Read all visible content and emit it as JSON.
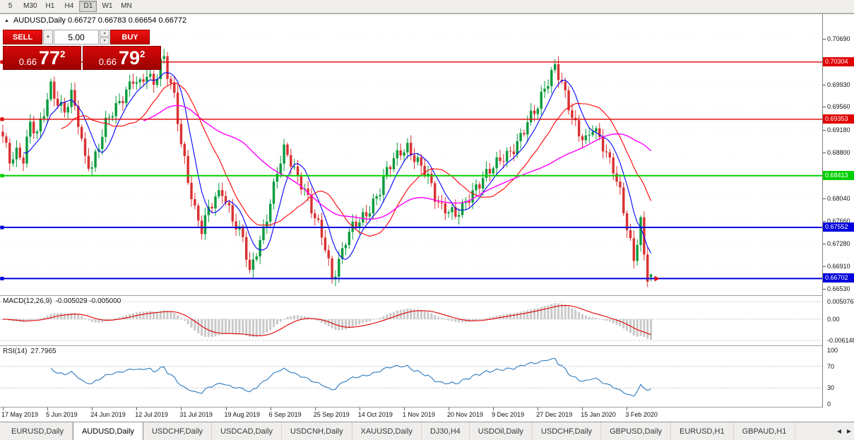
{
  "toolbar": {
    "timeframes": [
      "5",
      "M30",
      "H1",
      "H4",
      "D1",
      "W1",
      "MN"
    ],
    "active": "D1"
  },
  "chart_header": {
    "icon": "▲",
    "text": "AUDUSD,Daily 0.66727 0.66783 0.66654 0.66772"
  },
  "trade_panel": {
    "sell_label": "SELL",
    "buy_label": "BUY",
    "volume": "5.00",
    "combo_icon": "▼",
    "spin_up_icon": "▲",
    "spin_down_icon": "▼",
    "bid": {
      "small": "0.66",
      "big": "77",
      "sup": "2"
    },
    "ask": {
      "small": "0.66",
      "big": "79",
      "sup": "2"
    }
  },
  "chart_data": {
    "x_labels": [
      "17 May 2019",
      "5 Jun 2019",
      "24 Jun 2019",
      "12 Jul 2019",
      "31 Jul 2019",
      "19 Aug 2019",
      "6 Sep 2019",
      "25 Sep 2019",
      "14 Oct 2019",
      "1 Nov 2019",
      "20 Nov 2019",
      "9 Dec 2019",
      "27 Dec 2019",
      "15 Jan 2020",
      "3 Feb 2020"
    ],
    "main": {
      "type": "candlestick",
      "symbol": "AUDUSD",
      "timeframe": "Daily",
      "last_ohlc": {
        "open": 0.66727,
        "high": 0.66783,
        "low": 0.66654,
        "close": 0.66772
      },
      "candle_count": 190,
      "up_color": "#089b3c",
      "down_color": "#d93030",
      "view_top_price": 0.7069,
      "y_ticks": [
        {
          "text": "0.70690",
          "value": 0.7069
        },
        {
          "text": "0.69930",
          "value": 0.6993
        },
        {
          "text": "0.69560",
          "value": 0.6956
        },
        {
          "text": "0.69180",
          "value": 0.6918
        },
        {
          "text": "0.68800",
          "value": 0.688
        },
        {
          "text": "0.68040",
          "value": 0.6804
        },
        {
          "text": "0.67660",
          "value": 0.6766
        },
        {
          "text": "0.67280",
          "value": 0.6728
        },
        {
          "text": "0.66910",
          "value": 0.6691
        },
        {
          "text": "0.66530",
          "value": 0.6653
        }
      ],
      "levels": [
        {
          "text": "0.70304",
          "price": 0.70304,
          "color": "#e00000",
          "width": 1.4
        },
        {
          "text": "0.69353",
          "price": 0.69353,
          "color": "#e00000",
          "width": 1.4
        },
        {
          "text": "0.68413",
          "price": 0.68413,
          "color": "#00d000",
          "width": 2
        },
        {
          "text": "0.67552",
          "price": 0.67552,
          "color": "#0000dd",
          "width": 2
        },
        {
          "text": "0.66702",
          "price": 0.66702,
          "color": "#0000dd",
          "width": 2
        }
      ],
      "moving_averages": [
        {
          "period": 7,
          "color": "#0000ff"
        },
        {
          "period": 18,
          "color": "#ff0000"
        },
        {
          "period": 42,
          "color": "#ff00ff"
        }
      ],
      "marker": {
        "shape": "arrow-right",
        "price": 0.667,
        "color": "#e00000"
      },
      "close_anchors": [
        [
          0,
          0.6902
        ],
        [
          2,
          0.6868
        ],
        [
          4,
          0.6884
        ],
        [
          6,
          0.6872
        ],
        [
          8,
          0.6926
        ],
        [
          10,
          0.6906
        ],
        [
          12,
          0.6948
        ],
        [
          14,
          0.6994
        ],
        [
          16,
          0.6966
        ],
        [
          18,
          0.6946
        ],
        [
          20,
          0.6972
        ],
        [
          22,
          0.693
        ],
        [
          24,
          0.6872
        ],
        [
          26,
          0.686
        ],
        [
          28,
          0.689
        ],
        [
          30,
          0.6924
        ],
        [
          32,
          0.6946
        ],
        [
          34,
          0.6966
        ],
        [
          36,
          0.6986
        ],
        [
          38,
          0.7002
        ],
        [
          40,
          0.6988
        ],
        [
          42,
          0.7008
        ],
        [
          44,
          0.6996
        ],
        [
          46,
          0.7034
        ],
        [
          47,
          0.704
        ],
        [
          48,
          0.7012
        ],
        [
          50,
          0.6968
        ],
        [
          52,
          0.6892
        ],
        [
          54,
          0.6836
        ],
        [
          56,
          0.6788
        ],
        [
          58,
          0.6754
        ],
        [
          60,
          0.6782
        ],
        [
          62,
          0.68
        ],
        [
          64,
          0.6816
        ],
        [
          66,
          0.6788
        ],
        [
          68,
          0.676
        ],
        [
          70,
          0.6736
        ],
        [
          72,
          0.6674
        ],
        [
          74,
          0.6716
        ],
        [
          76,
          0.6754
        ],
        [
          78,
          0.68
        ],
        [
          80,
          0.6846
        ],
        [
          82,
          0.688
        ],
        [
          84,
          0.6864
        ],
        [
          86,
          0.6842
        ],
        [
          88,
          0.6822
        ],
        [
          90,
          0.6784
        ],
        [
          92,
          0.6754
        ],
        [
          94,
          0.6722
        ],
        [
          96,
          0.6672
        ],
        [
          98,
          0.6702
        ],
        [
          100,
          0.6734
        ],
        [
          102,
          0.6752
        ],
        [
          104,
          0.6764
        ],
        [
          106,
          0.678
        ],
        [
          108,
          0.68
        ],
        [
          110,
          0.6818
        ],
        [
          112,
          0.6846
        ],
        [
          114,
          0.6866
        ],
        [
          116,
          0.6884
        ],
        [
          118,
          0.6892
        ],
        [
          120,
          0.6872
        ],
        [
          122,
          0.6852
        ],
        [
          124,
          0.6836
        ],
        [
          126,
          0.6808
        ],
        [
          128,
          0.6792
        ],
        [
          130,
          0.6786
        ],
        [
          132,
          0.6772
        ],
        [
          134,
          0.6784
        ],
        [
          136,
          0.6806
        ],
        [
          138,
          0.6826
        ],
        [
          140,
          0.684
        ],
        [
          142,
          0.6848
        ],
        [
          144,
          0.6858
        ],
        [
          146,
          0.6872
        ],
        [
          148,
          0.6884
        ],
        [
          150,
          0.6898
        ],
        [
          152,
          0.6916
        ],
        [
          154,
          0.6936
        ],
        [
          156,
          0.6956
        ],
        [
          158,
          0.6992
        ],
        [
          160,
          0.7014
        ],
        [
          161,
          0.7026
        ],
        [
          162,
          0.7008
        ],
        [
          164,
          0.6972
        ],
        [
          166,
          0.6936
        ],
        [
          168,
          0.6916
        ],
        [
          170,
          0.6904
        ],
        [
          172,
          0.6922
        ],
        [
          174,
          0.6898
        ],
        [
          176,
          0.6874
        ],
        [
          178,
          0.6856
        ],
        [
          180,
          0.6818
        ],
        [
          182,
          0.6756
        ],
        [
          184,
          0.6696
        ],
        [
          186,
          0.6762
        ],
        [
          187,
          0.6706
        ],
        [
          188,
          0.6676
        ],
        [
          189,
          0.66772
        ]
      ]
    },
    "macd": {
      "type": "macd",
      "label": "MACD(12,26,9)",
      "values_text": "-0.005029 -0.005000",
      "params": [
        12,
        26,
        9
      ],
      "histogram_color": "#c9c9c9",
      "signal_color": "#e00000",
      "axis_ticks": [
        {
          "text": "0.005076",
          "value": 0.005076
        },
        {
          "text": "0.00",
          "value": 0
        },
        {
          "text": "-0.006148",
          "value": -0.006148
        }
      ]
    },
    "rsi": {
      "type": "rsi",
      "label": "RSI(14)",
      "period": 14,
      "value_text": "27.7965",
      "line_color": "#2e7bbf",
      "axis_ticks": [
        {
          "text": "100",
          "value": 100
        },
        {
          "text": "70",
          "value": 70
        },
        {
          "text": "30",
          "value": 30
        },
        {
          "text": "0",
          "value": 0
        }
      ],
      "dashed_levels": [
        70,
        30
      ]
    }
  },
  "tabs": {
    "items": [
      "EURUSD,Daily",
      "AUDUSD,Daily",
      "USDCHF,Daily",
      "USDCAD,Daily",
      "USDCNH,Daily",
      "XAUUSD,Daily",
      "DJ30,H4",
      "USDOil,Daily",
      "USDCHF,Daily",
      "GBPUSD,Daily",
      "EURUSD,H1",
      "GBPAUD,H1"
    ],
    "active_index": 1,
    "scroll_left_icon": "◀",
    "scroll_right_icon": "▶"
  }
}
